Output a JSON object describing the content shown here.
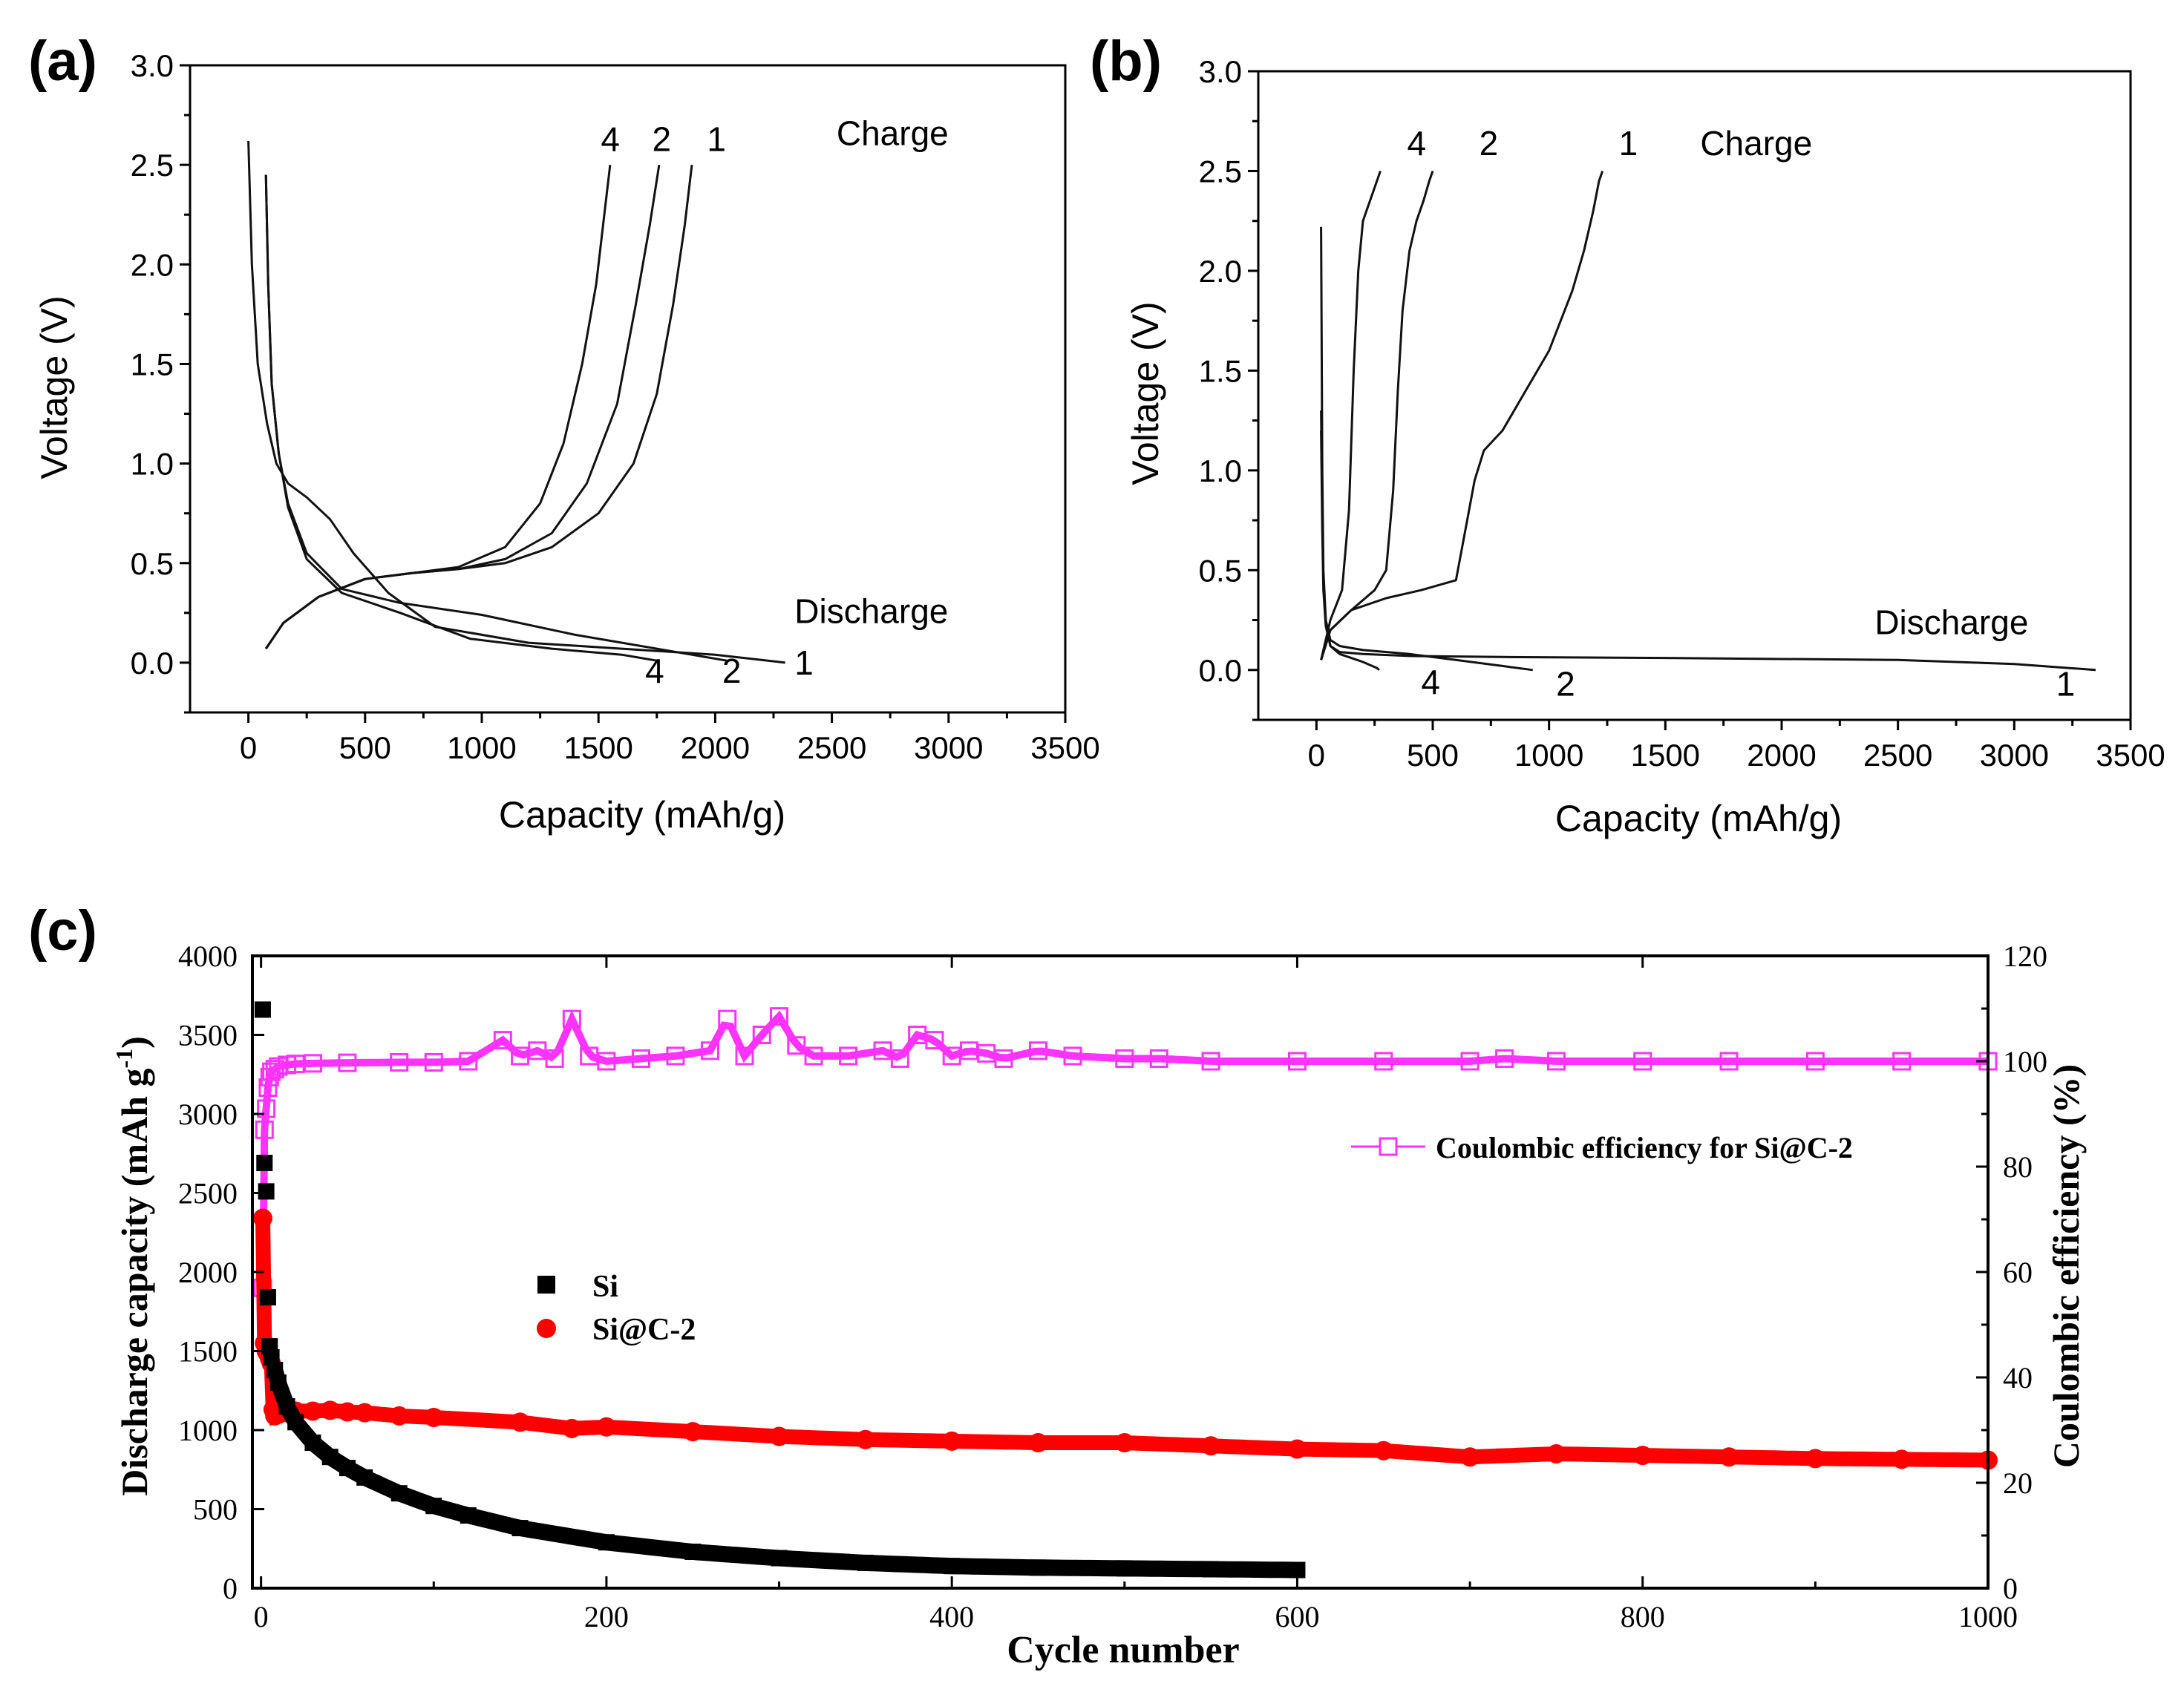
{
  "chart_data": [
    {
      "panel": "(a)",
      "type": "line",
      "xlabel": "Capacity (mAh/g)",
      "ylabel": "Voltage (V)",
      "xlim": [
        -250,
        3500
      ],
      "ylim": [
        -0.25,
        3.0
      ],
      "xticks": [
        0,
        500,
        1000,
        1500,
        2000,
        2500,
        3000,
        3500
      ],
      "yticks": [
        0.0,
        0.5,
        1.0,
        1.5,
        2.0,
        2.5,
        3.0
      ],
      "xtick_labels": [
        "0",
        "500",
        "1000",
        "1500",
        "2000",
        "2500",
        "3000",
        "3500"
      ],
      "ytick_labels": [
        "0.0",
        "0.5",
        "1.0",
        "1.5",
        "2.0",
        "2.5",
        "3.0"
      ],
      "annotations": [
        {
          "text": "Charge",
          "x": 2520,
          "y": 2.6
        },
        {
          "text": "Discharge",
          "x": 2340,
          "y": 0.2
        },
        {
          "text": "4",
          "x": 1510,
          "y": 2.57
        },
        {
          "text": "2",
          "x": 1730,
          "y": 2.57
        },
        {
          "text": "1",
          "x": 1965,
          "y": 2.57
        },
        {
          "text": "4",
          "x": 1700,
          "y": -0.1
        },
        {
          "text": "2",
          "x": 2030,
          "y": -0.1
        },
        {
          "text": "1",
          "x": 2340,
          "y": -0.06
        }
      ],
      "series": [
        {
          "name": "Discharge 1",
          "x": [
            0,
            15,
            40,
            80,
            120,
            170,
            250,
            350,
            450,
            600,
            800,
            1200,
            1600,
            2000,
            2300
          ],
          "y": [
            2.62,
            2.0,
            1.5,
            1.2,
            1.0,
            0.9,
            0.83,
            0.72,
            0.55,
            0.35,
            0.18,
            0.1,
            0.07,
            0.04,
            0.0
          ]
        },
        {
          "name": "Discharge 2",
          "x": [
            75,
            85,
            100,
            130,
            170,
            250,
            400,
            650,
            1000,
            1400,
            1800,
            2050
          ],
          "y": [
            2.45,
            1.9,
            1.4,
            1.05,
            0.8,
            0.55,
            0.37,
            0.3,
            0.24,
            0.14,
            0.06,
            0.01
          ]
        },
        {
          "name": "Discharge 4",
          "x": [
            75,
            85,
            100,
            130,
            170,
            250,
            400,
            650,
            950,
            1300,
            1600,
            1750
          ],
          "y": [
            2.45,
            1.9,
            1.4,
            1.05,
            0.78,
            0.52,
            0.35,
            0.25,
            0.12,
            0.07,
            0.04,
            0.01
          ]
        },
        {
          "name": "Charge 1",
          "x": [
            75,
            150,
            300,
            500,
            700,
            900,
            1100,
            1300,
            1500,
            1650,
            1750,
            1820,
            1870,
            1900
          ],
          "y": [
            0.07,
            0.2,
            0.33,
            0.42,
            0.45,
            0.47,
            0.5,
            0.58,
            0.75,
            1.0,
            1.35,
            1.8,
            2.2,
            2.5
          ]
        },
        {
          "name": "Charge 2",
          "x": [
            75,
            150,
            300,
            500,
            700,
            900,
            1100,
            1300,
            1450,
            1580,
            1660,
            1720,
            1760
          ],
          "y": [
            0.07,
            0.2,
            0.33,
            0.42,
            0.45,
            0.47,
            0.52,
            0.65,
            0.9,
            1.3,
            1.8,
            2.2,
            2.5
          ]
        },
        {
          "name": "Charge 4",
          "x": [
            75,
            150,
            300,
            500,
            700,
            900,
            1100,
            1250,
            1350,
            1430,
            1490,
            1530,
            1550
          ],
          "y": [
            0.07,
            0.2,
            0.33,
            0.42,
            0.45,
            0.48,
            0.58,
            0.8,
            1.1,
            1.5,
            1.9,
            2.3,
            2.5
          ]
        }
      ]
    },
    {
      "panel": "(b)",
      "type": "line",
      "xlabel": "Capacity (mAh/g)",
      "ylabel": "Voltage (V)",
      "xlim": [
        -250,
        3500
      ],
      "ylim": [
        -0.25,
        3.0
      ],
      "xticks": [
        0,
        500,
        1000,
        1500,
        2000,
        2500,
        3000,
        3500
      ],
      "yticks": [
        0.0,
        0.5,
        1.0,
        1.5,
        2.0,
        2.5,
        3.0
      ],
      "xtick_labels": [
        "0",
        "500",
        "1000",
        "1500",
        "2000",
        "2500",
        "3000",
        "3500"
      ],
      "ytick_labels": [
        "0.0",
        "0.5",
        "1.0",
        "1.5",
        "2.0",
        "2.5",
        "3.0"
      ],
      "annotations": [
        {
          "text": "Charge",
          "x": 1650,
          "y": 2.58
        },
        {
          "text": "Discharge",
          "x": 2400,
          "y": 0.18
        },
        {
          "text": "4",
          "x": 390,
          "y": 2.58
        },
        {
          "text": "2",
          "x": 700,
          "y": 2.58
        },
        {
          "text": "1",
          "x": 1300,
          "y": 2.58
        },
        {
          "text": "4",
          "x": 450,
          "y": -0.12
        },
        {
          "text": "2",
          "x": 1030,
          "y": -0.13
        },
        {
          "text": "1",
          "x": 3180,
          "y": -0.13
        }
      ],
      "series": [
        {
          "name": "Discharge 1",
          "x": [
            20,
            25,
            30,
            40,
            60,
            100,
            200,
            400,
            800,
            1500,
            2500,
            3000,
            3350
          ],
          "y": [
            2.22,
            1.0,
            0.5,
            0.25,
            0.12,
            0.09,
            0.08,
            0.07,
            0.065,
            0.06,
            0.05,
            0.03,
            0.0
          ]
        },
        {
          "name": "Discharge 2",
          "x": [
            20,
            25,
            30,
            40,
            60,
            100,
            200,
            400,
            600,
            800,
            930
          ],
          "y": [
            1.3,
            0.8,
            0.45,
            0.25,
            0.15,
            0.12,
            0.1,
            0.08,
            0.05,
            0.02,
            0.0
          ]
        },
        {
          "name": "Discharge 4",
          "x": [
            20,
            25,
            30,
            40,
            60,
            100,
            150,
            200,
            260,
            270
          ],
          "y": [
            1.2,
            0.7,
            0.4,
            0.22,
            0.12,
            0.08,
            0.06,
            0.04,
            0.01,
            0.0
          ]
        },
        {
          "name": "Charge 1",
          "x": [
            20,
            60,
            150,
            300,
            450,
            600,
            640,
            680,
            720,
            800,
            900,
            1000,
            1100,
            1150,
            1190,
            1215,
            1230
          ],
          "y": [
            0.05,
            0.2,
            0.3,
            0.36,
            0.4,
            0.45,
            0.7,
            0.95,
            1.1,
            1.2,
            1.4,
            1.6,
            1.9,
            2.1,
            2.3,
            2.45,
            2.5
          ]
        },
        {
          "name": "Charge 2",
          "x": [
            20,
            60,
            150,
            250,
            300,
            330,
            350,
            370,
            400,
            430,
            460,
            485,
            500
          ],
          "y": [
            0.05,
            0.2,
            0.3,
            0.4,
            0.5,
            0.9,
            1.4,
            1.8,
            2.1,
            2.25,
            2.35,
            2.45,
            2.5
          ]
        },
        {
          "name": "Charge 4",
          "x": [
            20,
            60,
            110,
            140,
            160,
            180,
            200,
            230,
            260,
            275
          ],
          "y": [
            0.05,
            0.25,
            0.4,
            0.8,
            1.5,
            2.0,
            2.25,
            2.35,
            2.45,
            2.5
          ]
        }
      ]
    },
    {
      "panel": "(c)",
      "type": "scatter",
      "xlabel": "Cycle number",
      "ylabel": "Discharge capacity (mAh g",
      "ylabel_sup": "-1",
      "ylabel_close": ")",
      "ylabel_right": "Coulombic efficiency (%)",
      "xlim": [
        -5,
        1000
      ],
      "ylim": [
        0,
        4000
      ],
      "ylim_right": [
        0,
        120
      ],
      "xticks": [
        0,
        200,
        400,
        600,
        800,
        1000
      ],
      "yticks": [
        0,
        500,
        1000,
        1500,
        2000,
        2500,
        3000,
        3500,
        4000
      ],
      "yticks_right": [
        0,
        20,
        40,
        60,
        80,
        100,
        120
      ],
      "xtick_labels": [
        "0",
        "200",
        "400",
        "600",
        "800",
        "1000"
      ],
      "ytick_labels": [
        "0",
        "500",
        "1000",
        "1500",
        "2000",
        "2500",
        "3000",
        "3500",
        "4000"
      ],
      "ytick_labels_right": [
        "0",
        "20",
        "40",
        "60",
        "80",
        "100",
        "120"
      ],
      "legend_left": {
        "position": "center-left",
        "entries": [
          "Si",
          "Si@C-2"
        ]
      },
      "legend_right": {
        "position": "upper-right",
        "entries": [
          "Coulombic efficiency for Si@C-2"
        ]
      },
      "series": [
        {
          "name": "Si",
          "axis": "left",
          "color": "#000000",
          "marker": "square",
          "x": [
            1,
            2,
            3,
            4,
            5,
            6,
            8,
            10,
            15,
            20,
            30,
            40,
            50,
            60,
            80,
            100,
            120,
            150,
            200,
            250,
            300,
            350,
            400,
            450,
            500,
            550,
            600
          ],
          "y": [
            3660,
            2690,
            2510,
            1840,
            1530,
            1460,
            1380,
            1300,
            1150,
            1050,
            920,
            830,
            760,
            700,
            600,
            520,
            460,
            380,
            290,
            230,
            190,
            160,
            140,
            130,
            125,
            120,
            115
          ]
        },
        {
          "name": "Si@C-2",
          "axis": "left",
          "color": "#ff0000",
          "marker": "circle",
          "x": [
            1,
            2,
            3,
            4,
            5,
            6,
            7,
            8,
            10,
            15,
            20,
            30,
            40,
            50,
            60,
            80,
            100,
            150,
            180,
            200,
            250,
            300,
            350,
            400,
            450,
            500,
            550,
            600,
            650,
            700,
            750,
            800,
            850,
            900,
            950,
            1000
          ],
          "y": [
            2340,
            1550,
            1500,
            1480,
            1450,
            1420,
            1130,
            1090,
            1100,
            1110,
            1120,
            1120,
            1125,
            1115,
            1110,
            1090,
            1080,
            1050,
            1010,
            1020,
            990,
            960,
            940,
            930,
            920,
            920,
            900,
            880,
            870,
            830,
            850,
            840,
            830,
            820,
            815,
            810
          ]
        },
        {
          "name": "Coulombic efficiency for Si@C-2",
          "axis": "right",
          "color": "#ff33ff",
          "marker": "open-square",
          "x": [
            1,
            2,
            3,
            4,
            5,
            6,
            8,
            10,
            15,
            20,
            30,
            50,
            80,
            100,
            120,
            140,
            150,
            160,
            170,
            180,
            190,
            200,
            220,
            240,
            260,
            270,
            280,
            290,
            300,
            310,
            320,
            340,
            360,
            370,
            380,
            390,
            400,
            410,
            420,
            430,
            450,
            470,
            500,
            520,
            550,
            600,
            650,
            700,
            720,
            750,
            800,
            850,
            900,
            950,
            1000
          ],
          "y": [
            57,
            87,
            91,
            95,
            97,
            98,
            98.5,
            99,
            99.3,
            99.5,
            99.6,
            99.7,
            99.8,
            99.8,
            100,
            104,
            101,
            102,
            100.5,
            108,
            101,
            100,
            100.5,
            101,
            102,
            108,
            101,
            105,
            108.5,
            103,
            101,
            101,
            102,
            100.5,
            105,
            104,
            101,
            102,
            101.5,
            100.5,
            102,
            101,
            100.5,
            100.5,
            100,
            100,
            100,
            100,
            100.5,
            100,
            100,
            100,
            100,
            100,
            100
          ]
        }
      ]
    }
  ],
  "labels": {
    "a": "(a)",
    "b": "(b)",
    "c": "(c)"
  }
}
